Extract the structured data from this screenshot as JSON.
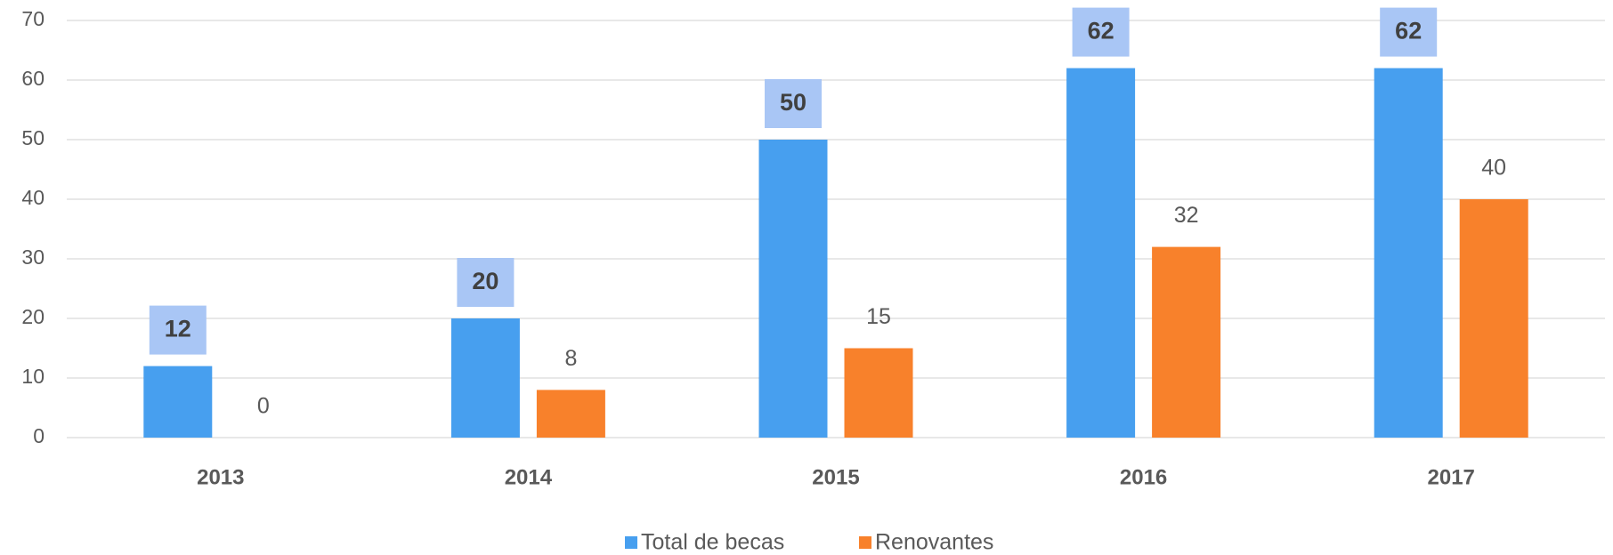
{
  "chart_data": {
    "type": "bar",
    "categories": [
      "2013",
      "2014",
      "2015",
      "2016",
      "2017"
    ],
    "series": [
      {
        "name": "Total de becas",
        "color": "#479fef",
        "values": [
          12,
          20,
          50,
          62,
          62
        ]
      },
      {
        "name": "Renovantes",
        "color": "#f8812b",
        "values": [
          0,
          8,
          15,
          32,
          40
        ]
      }
    ],
    "ylim": [
      0,
      70
    ],
    "yticks": [
      0,
      10,
      20,
      30,
      40,
      50,
      60,
      70
    ],
    "grid": true,
    "legend": "bottom"
  }
}
